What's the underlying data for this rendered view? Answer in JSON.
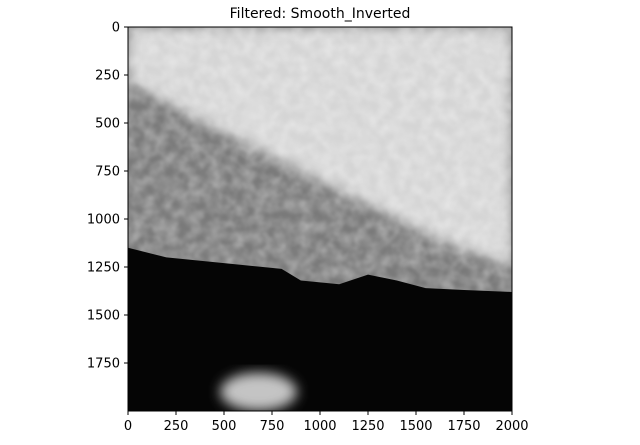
{
  "chart_data": {
    "type": "heatmap",
    "title": "Filtered: Smooth_Inverted",
    "xlabel": "",
    "ylabel": "",
    "xlim": [
      0,
      2000
    ],
    "ylim": [
      2000,
      0
    ],
    "x_ticks": [
      0,
      250,
      500,
      750,
      1000,
      1250,
      1500,
      1750,
      2000
    ],
    "y_ticks": [
      0,
      250,
      500,
      750,
      1000,
      1250,
      1500,
      1750
    ],
    "colormap": "gray",
    "grid": false,
    "legend": "none",
    "image_description_regions": {
      "dark_region_boundary": [
        [
          0,
          1150
        ],
        [
          200,
          1200
        ],
        [
          500,
          1230
        ],
        [
          800,
          1260
        ],
        [
          900,
          1320
        ],
        [
          1100,
          1340
        ],
        [
          1250,
          1290
        ],
        [
          1400,
          1320
        ],
        [
          1550,
          1360
        ],
        [
          1750,
          1370
        ],
        [
          2000,
          1380
        ]
      ],
      "bottom_bright_blob": {
        "cx": 680,
        "cy": 1900,
        "rx": 200,
        "ry": 100
      },
      "bright_band": [
        [
          0,
          0
        ],
        [
          2000,
          0
        ],
        [
          2000,
          1250
        ],
        [
          1600,
          1100
        ],
        [
          1200,
          900
        ],
        [
          800,
          700
        ],
        [
          400,
          500
        ],
        [
          0,
          280
        ]
      ]
    }
  },
  "colors": {
    "dark": "#050505",
    "mid_gray": "#7a7a7a",
    "bright": "#e6e6e6"
  }
}
